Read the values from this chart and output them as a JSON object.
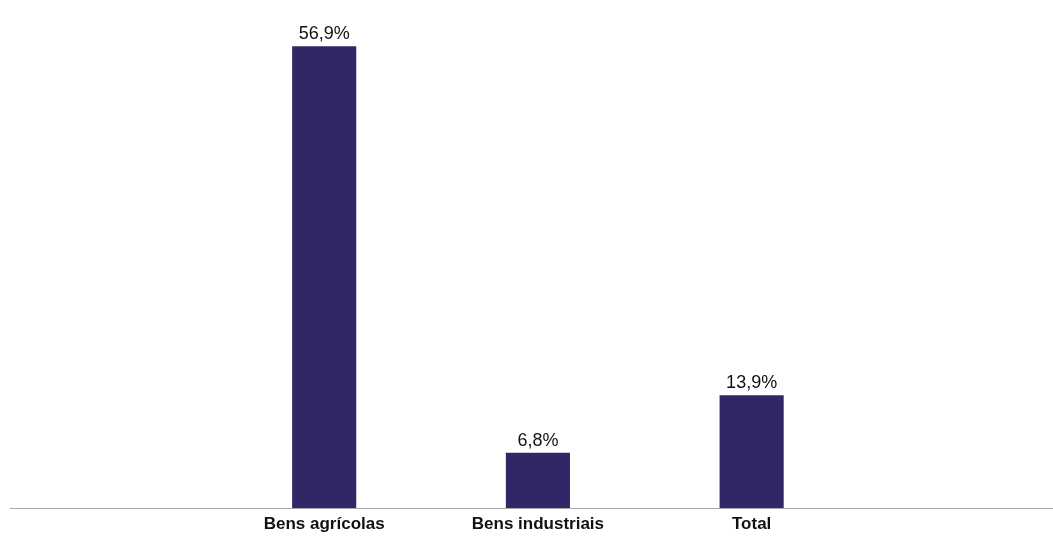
{
  "chart_data": {
    "type": "bar",
    "categories": [
      "Bens agrícolas",
      "Bens industriais",
      "Total"
    ],
    "values": [
      56.9,
      6.8,
      13.9
    ],
    "color": "#302866",
    "value_labels": [
      "56,9%",
      "6,8%",
      "13,9%"
    ],
    "grid": false,
    "legend": false
  }
}
